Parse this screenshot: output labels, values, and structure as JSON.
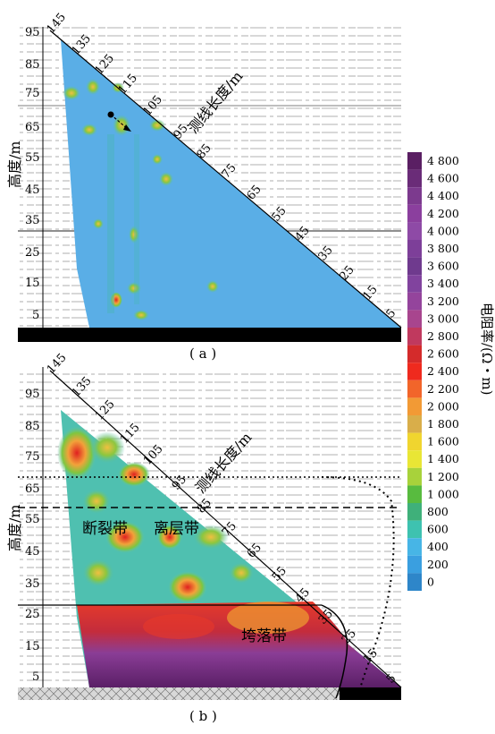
{
  "panel_a": {
    "caption": "( a )",
    "y_axis_label": "高度/m",
    "diag_axis_label": "测线长度/m",
    "y_ticks": [
      "95",
      "85",
      "75",
      "65",
      "55",
      "45",
      "35",
      "25",
      "15",
      "5"
    ],
    "diag_ticks": [
      "145",
      "135",
      "125",
      "115",
      "105",
      "95",
      "85",
      "75",
      "65",
      "55",
      "45",
      "35",
      "25",
      "15",
      "5"
    ]
  },
  "panel_b": {
    "caption": "( b )",
    "y_axis_label": "高度/m",
    "diag_axis_label": "测线长度/m",
    "y_ticks": [
      "95",
      "85",
      "75",
      "65",
      "55",
      "45",
      "35",
      "25",
      "15",
      "5"
    ],
    "diag_ticks": [
      "145",
      "135",
      "125",
      "115",
      "105",
      "95",
      "85",
      "75",
      "65",
      "55",
      "45",
      "35",
      "25",
      "15",
      "5"
    ],
    "zones": {
      "fracture": "断裂带",
      "separation": "离层带",
      "collapse": "垮落带"
    }
  },
  "legend": {
    "title": "电阻率/(Ω・m)",
    "labels": [
      "4 800",
      "4 600",
      "4 400",
      "4 200",
      "4 000",
      "3 800",
      "3 600",
      "3 400",
      "3 200",
      "3 000",
      "2 800",
      "2 600",
      "2 400",
      "2 200",
      "2 000",
      "1 800",
      "1 600",
      "1 400",
      "1 200",
      "1 000",
      "800",
      "600",
      "400",
      "200",
      "0"
    ],
    "colors": [
      "#5a1f63",
      "#6a2c78",
      "#7c3a8e",
      "#8b3f9e",
      "#8e4aa6",
      "#7d3f99",
      "#6f3a8e",
      "#81439e",
      "#94449c",
      "#a8458e",
      "#c0395e",
      "#d42b2b",
      "#ef2a1e",
      "#f2652a",
      "#f29a35",
      "#d9ae4a",
      "#f0d52f",
      "#e9e635",
      "#a8d23b",
      "#58bb3f",
      "#3fb07a",
      "#3ec2b0",
      "#47b5e6",
      "#3a9fe0",
      "#2e86c9"
    ]
  }
}
